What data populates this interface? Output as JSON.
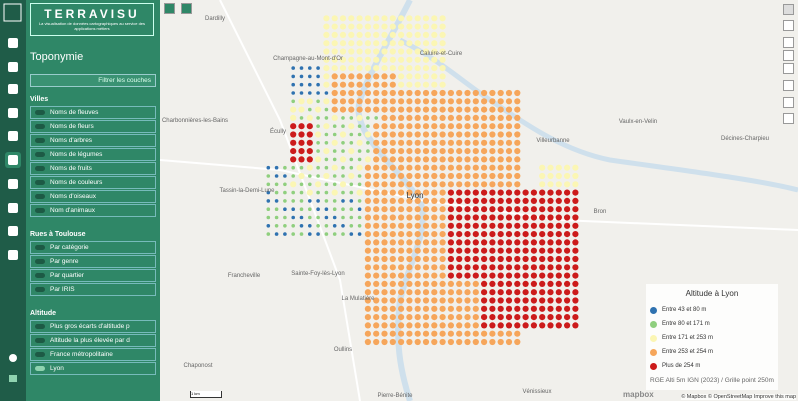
{
  "sidebar": {
    "logo": "TERRAVISU",
    "tagline": "La visualisation de données cartographiques au service des applications métiers",
    "title": "Toponymie",
    "search_placeholder": "Filtrer les couches",
    "groups": [
      {
        "title": "Villes",
        "layers": [
          "Noms de fleuves",
          "Noms de fleurs",
          "Noms d'arbres",
          "Noms de légumes",
          "Noms de fruits",
          "Noms de couleurs",
          "Noms d'oiseaux",
          "Nom d'animaux"
        ]
      },
      {
        "title": "Rues à Toulouse",
        "layers": [
          "Par catégorie",
          "Par genre",
          "Par quartier",
          "Par IRIS"
        ]
      },
      {
        "title": "Altitude",
        "layers": [
          "Plus gros écarts d'altitude p",
          "Altitude la plus élevée par d",
          "France métropolitaine",
          "Lyon"
        ]
      }
    ]
  },
  "map": {
    "places": [
      "Dardilly",
      "Champagne-au-Mont-d'Or",
      "Caluire-et-Cuire",
      "Charbonnières-les-Bains",
      "Écully",
      "Villeurbanne",
      "Vaulx-en-Velin",
      "Décines-Charpieu",
      "Tassin-la-Demi-Lune",
      "Lyon",
      "Bron",
      "Francheville",
      "Sainte-Foy-lès-Lyon",
      "La Mulatière",
      "Oullins",
      "Chaponost",
      "Pierre-Bénite",
      "Vénissieux"
    ],
    "legend": {
      "title": "Altitude à Lyon",
      "items": [
        {
          "label": "Entre 43 et 80 m",
          "color": "#2f72b0"
        },
        {
          "label": "Entre 80 et 171 m",
          "color": "#8fcf7e"
        },
        {
          "label": "Entre 171 et 253 m",
          "color": "#fbf6b4"
        },
        {
          "label": "Entre 253 et 254 m",
          "color": "#f6a65b"
        },
        {
          "label": "Plus de 254 m",
          "color": "#cc1b1b"
        }
      ],
      "source": "RGE Alti 5m IGN (2023) / Grille point 250m"
    },
    "scale": "1 km",
    "logo": "mapbox",
    "attribution": "© Mapbox © OpenStreetMap Improve this map"
  }
}
